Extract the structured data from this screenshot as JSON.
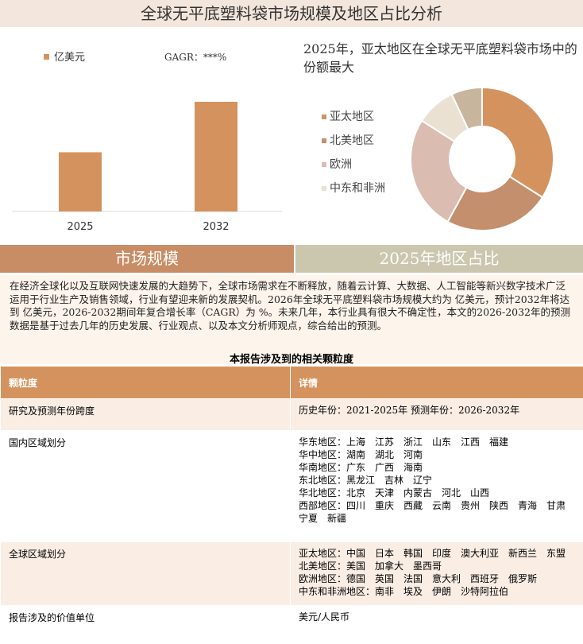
{
  "header": {
    "title": "全球无平底塑料袋市场规模及地区占比分析"
  },
  "chart_data": [
    {
      "type": "bar",
      "categories": [
        "2025",
        "2032"
      ],
      "series": [
        {
          "name": "亿美元",
          "color": "#d4935e",
          "values": [
            54,
            100
          ]
        }
      ],
      "annotation": "GAGR：***%"
    },
    {
      "type": "pie",
      "title": "2025年，亚太地区在全球无平底塑料袋市场中的份额最大",
      "categories": [
        "亚太地区",
        "北美地区",
        "欧洲",
        "中东和非洲",
        null
      ],
      "values": [
        34,
        24,
        26,
        9,
        7
      ],
      "colors": [
        "#d4935e",
        "#c38f6c",
        "#dbbcb1",
        "#eae1d2",
        "#c8b59e"
      ]
    }
  ],
  "tabs": [
    "市场规模",
    "2025年地区占比"
  ],
  "paragraph": "在经济全球化以及互联网快速发展的大趋势下，全球市场需求在不断释放，随着云计算、大数据、人工智能等新兴数字技术广泛运用于行业生产及销售领域，行业有望迎来新的发展契机。2026年全球无平底塑料袋市场规模大约为 亿美元，预计2032年将达到 亿美元，2026-2032期间年复合增长率（CAGR）为 %。未来几年，本行业具有很大不确定性，本文的2026-2032年的预测数据是基于过去几年的历史发展、行业观点、以及本文分析师观点，综合给出的预测。",
  "table": {
    "title": "本报告涉及到的相关颗粒度",
    "header": [
      "颗粒度",
      "详情"
    ],
    "rows": [
      [
        "研究及预测年份跨度",
        [
          "历史年份：2021-2025年 预测年份：2026-2032年"
        ]
      ],
      [
        "国内区域划分",
        [
          "华东地区：上海　江苏　浙江　山东　江西　福建",
          "华中地区：湖南　湖北　河南",
          "华南地区：广东　广西　海南",
          "东北地区：黑龙江　吉林　辽宁",
          "华北地区：北京　天津　内蒙古　河北　山西",
          "西部地区：四川　重庆　西藏　云南　贵州　陕西　青海　甘肃　宁夏　新疆"
        ]
      ],
      [
        "全球区域划分",
        [
          "亚太地区：中国　日本　韩国　印度　澳大利亚　新西兰　东盟",
          "北美地区：美国　加拿大　墨西哥",
          "欧洲地区：德国　英国　法国　意大利　西班牙　俄罗斯",
          "中东和非洲地区：南非　埃及　伊朗　沙特阿拉伯"
        ]
      ],
      [
        "报告涉及的价值单位",
        [
          "美元/人民币"
        ]
      ]
    ]
  }
}
